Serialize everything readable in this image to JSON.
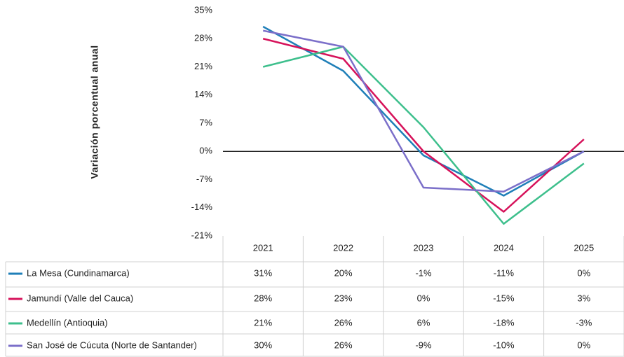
{
  "chart_data": {
    "type": "line",
    "y_label": "Variación porcentual anual",
    "categories": [
      "2021",
      "2022",
      "2023",
      "2024",
      "2025"
    ],
    "ylim": [
      -21,
      35
    ],
    "yticks": [
      {
        "value": -21,
        "label": "-21%"
      },
      {
        "value": -14,
        "label": "-14%"
      },
      {
        "value": -7,
        "label": "-7%"
      },
      {
        "value": 0,
        "label": "0%"
      },
      {
        "value": 7,
        "label": "7%"
      },
      {
        "value": 14,
        "label": "14%"
      },
      {
        "value": 21,
        "label": "21%"
      },
      {
        "value": 28,
        "label": "28%"
      },
      {
        "value": 35,
        "label": "35%"
      }
    ],
    "series": [
      {
        "name": "La Mesa (Cundinamarca)",
        "color": "#1f7fb8",
        "values": [
          31,
          20,
          -1,
          -11,
          0
        ],
        "value_labels": [
          "31%",
          "20%",
          "-1%",
          "-11%",
          "0%"
        ]
      },
      {
        "name": "Jamundí (Valle del Cauca)",
        "color": "#d6125a",
        "values": [
          28,
          23,
          0,
          -15,
          3
        ],
        "value_labels": [
          "28%",
          "23%",
          "0%",
          "-15%",
          "3%"
        ]
      },
      {
        "name": "Medellín (Antioquia)",
        "color": "#3dbf8c",
        "values": [
          21,
          26,
          6,
          -18,
          -3
        ],
        "value_labels": [
          "21%",
          "26%",
          "6%",
          "-18%",
          "-3%"
        ]
      },
      {
        "name": "San José de Cúcuta (Norte de Santander)",
        "color": "#7b6fc9",
        "values": [
          30,
          26,
          -9,
          -10,
          0
        ],
        "value_labels": [
          "30%",
          "26%",
          "-9%",
          "-10%",
          "0%"
        ]
      }
    ]
  }
}
